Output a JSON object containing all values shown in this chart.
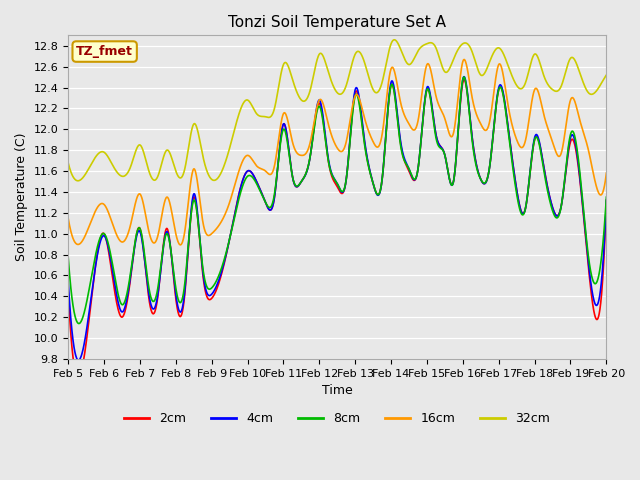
{
  "title": "Tonzi Soil Temperature Set A",
  "xlabel": "Time",
  "ylabel": "Soil Temperature (C)",
  "ylim": [
    9.8,
    12.9
  ],
  "annotation": "TZ_fmet",
  "annotation_bg": "#ffffcc",
  "annotation_border": "#cc9900",
  "annotation_text_color": "#990000",
  "bg_color": "#e8e8e8",
  "legend_entries": [
    "2cm",
    "4cm",
    "8cm",
    "16cm",
    "32cm"
  ],
  "line_colors": [
    "#ff0000",
    "#0000ff",
    "#00bb00",
    "#ff9900",
    "#cccc00"
  ],
  "xtick_labels": [
    "Feb 5",
    "Feb 6",
    "Feb 7",
    "Feb 8",
    "Feb 9",
    "Feb 10",
    "Feb 11",
    "Feb 12",
    "Feb 13",
    "Feb 14",
    "Feb 15",
    "Feb 16",
    "Feb 17",
    "Feb 18",
    "Feb 19",
    "Feb 20"
  ],
  "line_width": 1.2,
  "title_fontsize": 11,
  "axis_fontsize": 9,
  "tick_fontsize": 8
}
